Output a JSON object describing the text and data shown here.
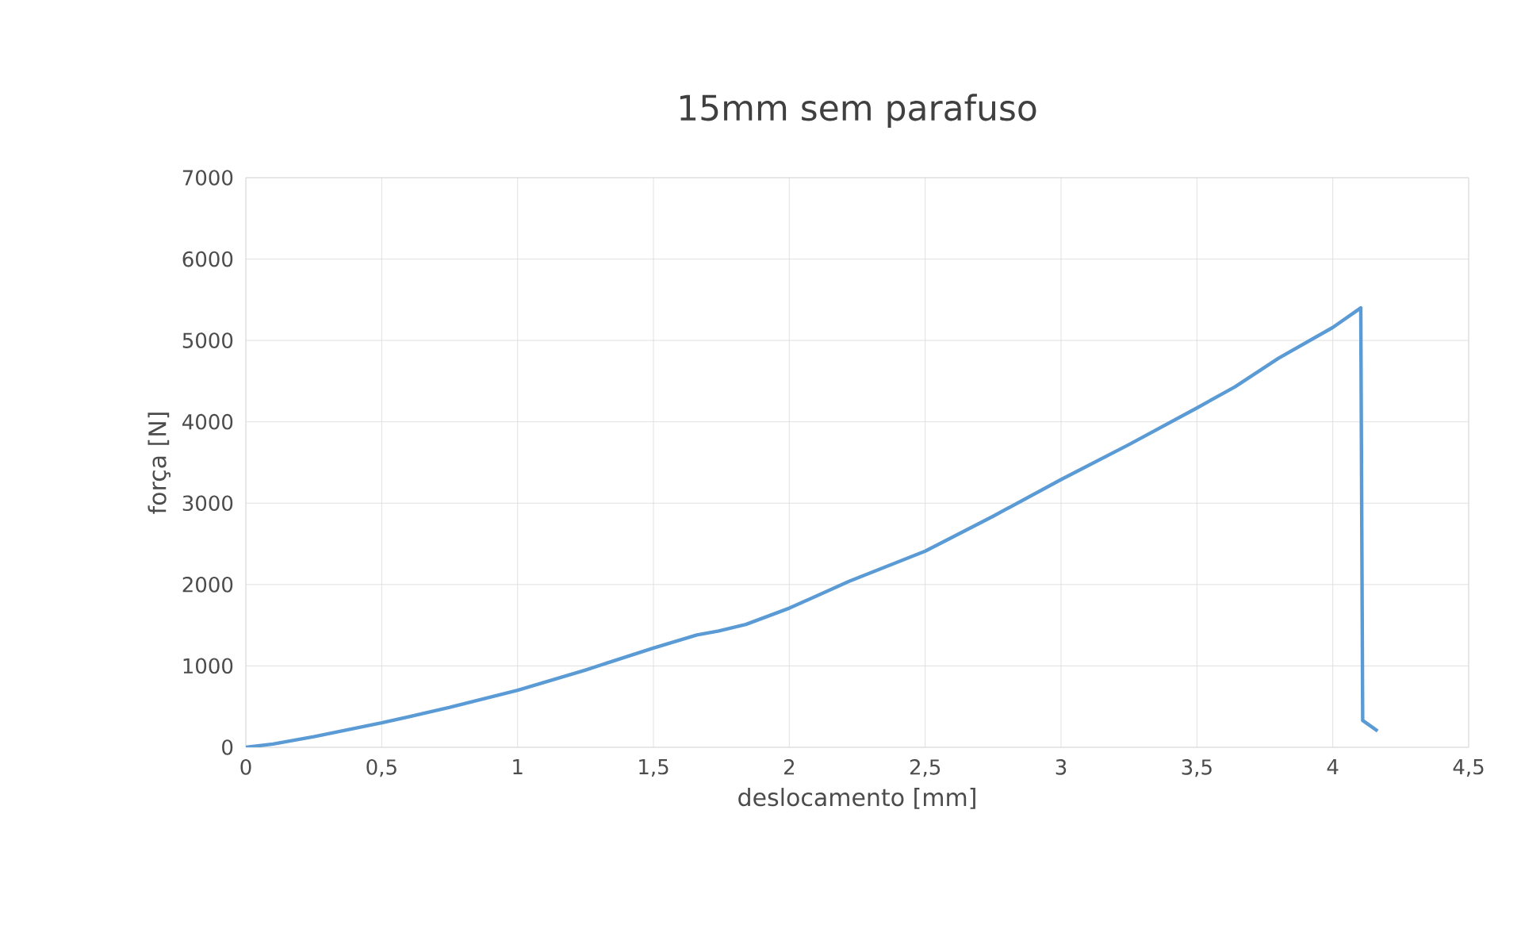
{
  "chart_data": {
    "type": "line",
    "title": "15mm sem parafuso",
    "xlabel": "deslocamento [mm]",
    "ylabel": "força [N]",
    "xlim": [
      0,
      4.5
    ],
    "xticks": [
      0,
      {
        "value": 0.5,
        "label": "0,5"
      },
      1,
      {
        "value": 1.5,
        "label": "1,5"
      },
      2,
      {
        "value": 2.5,
        "label": "2,5"
      },
      3,
      {
        "value": 3.5,
        "label": "3,5"
      },
      4,
      {
        "value": 4.5,
        "label": "4,5"
      }
    ],
    "ylim": [
      0,
      7000
    ],
    "yticks": [
      0,
      1000,
      2000,
      3000,
      4000,
      5000,
      6000,
      7000
    ],
    "grid": true,
    "marker": "none",
    "line_style": "solid",
    "series": [
      {
        "color": "#5b9bd5",
        "x": [
          0,
          0.1,
          0.25,
          0.5,
          0.75,
          1.0,
          1.25,
          1.5,
          1.66,
          1.74,
          1.84,
          2.0,
          2.22,
          2.5,
          2.75,
          3.0,
          3.25,
          3.5,
          3.64,
          3.8,
          4.0,
          4.103,
          4.11,
          4.165
        ],
        "values": [
          0,
          40,
          130,
          300,
          490,
          700,
          950,
          1220,
          1380,
          1430,
          1510,
          1710,
          2040,
          2410,
          2840,
          3290,
          3720,
          4170,
          4430,
          4780,
          5160,
          5400,
          330,
          200
        ]
      }
    ]
  }
}
